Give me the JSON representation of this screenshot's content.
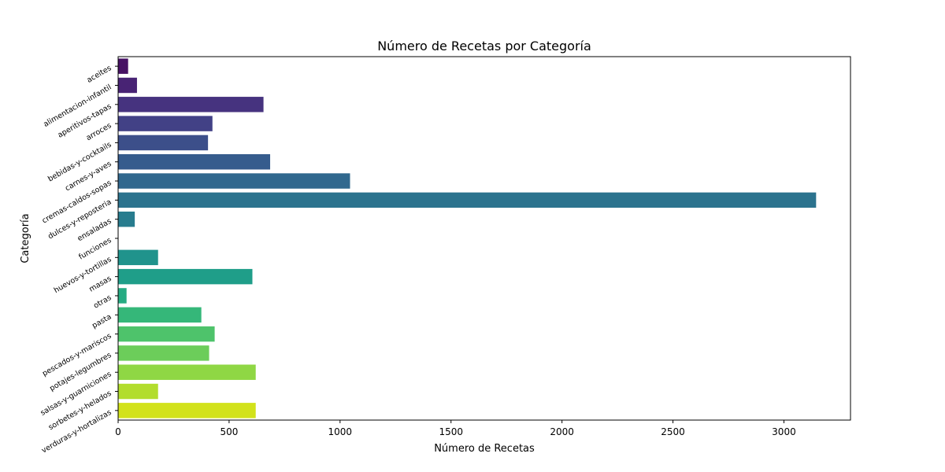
{
  "chart_data": {
    "type": "bar",
    "orientation": "horizontal",
    "title": "Número de Recetas por Categoría",
    "xlabel": "Número de Recetas",
    "ylabel": "Categoría",
    "xlim": [
      0,
      3300
    ],
    "xticks": [
      0,
      500,
      1000,
      1500,
      2000,
      2500,
      3000
    ],
    "grid": false,
    "legend": "none",
    "palette": "viridis",
    "categories": [
      "aceites",
      "alimentacion-infantil",
      "aperitivos-tapas",
      "arroces",
      "bebidas-y-cocktails",
      "carnes-y-aves",
      "cremas-caldos-sopas",
      "dulces-y-reposteria",
      "ensaladas",
      "funciones",
      "huevos-y-tortillas",
      "masas",
      "otras",
      "pasta",
      "pescados-y-mariscos",
      "potajes-legumbres",
      "salsas-y-guarniciones",
      "sorbetes-y-helados",
      "verduras-y-hortalizas"
    ],
    "values": [
      45,
      85,
      655,
      425,
      405,
      685,
      1045,
      3145,
      75,
      0,
      180,
      605,
      38,
      375,
      435,
      410,
      620,
      180,
      620
    ],
    "colors": [
      "#471164",
      "#482374",
      "#46337f",
      "#424186",
      "#3c4f8a",
      "#365c8d",
      "#31688e",
      "#2c738e",
      "#287c8e",
      "#23898e",
      "#20938c",
      "#1f9e89",
      "#25ab82",
      "#35b779",
      "#4ec36b",
      "#6ccd5a",
      "#8fd744",
      "#b2dd2d",
      "#d2e21b"
    ]
  }
}
